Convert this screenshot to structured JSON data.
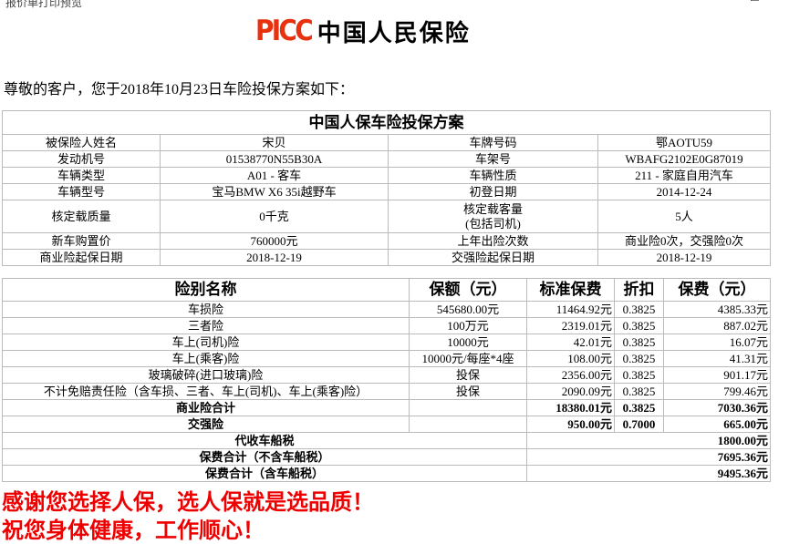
{
  "window": {
    "title": "报价单打印预览",
    "controls": [
      "—",
      "☐",
      "✕"
    ]
  },
  "logo": {
    "brand": "PICC",
    "name": "中国人民保险",
    "brand_color": "#e8320f"
  },
  "greeting": "尊敬的客户，您于2018年10月23日车险投保方案如下：",
  "info_table": {
    "title": "中国人保车险投保方案",
    "rows": [
      [
        "被保险人姓名",
        "宋贝",
        "车牌号码",
        "鄂AOTU59"
      ],
      [
        "发动机号",
        "01538770N55B30A",
        "车架号",
        "WBAFG2102E0G87019"
      ],
      [
        "车辆类型",
        "A01 - 客车",
        "车辆性质",
        "211 - 家庭自用汽车"
      ],
      [
        "车辆型号",
        "宝马BMW X6 35i越野车",
        "初登日期",
        "2014-12-24"
      ],
      [
        "核定载质量",
        "0千克",
        "核定载客量\n(包括司机)",
        "5人"
      ],
      [
        "新车购置价",
        "760000元",
        "上年出险次数",
        "商业险0次，交强险0次"
      ],
      [
        "商业险起保日期",
        "2018-12-19",
        "交强险起保日期",
        "2018-12-19"
      ]
    ]
  },
  "coverage_table": {
    "headers": [
      "险别名称",
      "保额（元）",
      "标准保费",
      "折扣",
      "保费（元）"
    ],
    "rows": [
      [
        "车损险",
        "545680.00元",
        "11464.92元",
        "0.3825",
        "4385.33元"
      ],
      [
        "三者险",
        "100万元",
        "2319.01元",
        "0.3825",
        "887.02元"
      ],
      [
        "车上(司机)险",
        "10000元",
        "42.01元",
        "0.3825",
        "16.07元"
      ],
      [
        "车上(乘客)险",
        "10000元/每座*4座",
        "108.00元",
        "0.3825",
        "41.31元"
      ],
      [
        "玻璃破碎(进口玻璃)险",
        "投保",
        "2356.00元",
        "0.3825",
        "901.17元"
      ],
      [
        "不计免赔责任险（含车损、三者、车上(司机)、车上(乘客)险）",
        "投保",
        "2090.09元",
        "0.3825",
        "799.46元"
      ]
    ],
    "commercial_total": {
      "label": "商业险合计",
      "standard": "18380.01元",
      "discount": "0.3825",
      "premium": "7030.36元"
    },
    "compulsory": {
      "label": "交强险",
      "standard": "950.00元",
      "discount": "0.7000",
      "premium": "665.00元"
    },
    "vehicle_tax": {
      "label": "代收车船税",
      "value": "1800.00元"
    },
    "total_excl_tax": {
      "label": "保费合计（不含车船税）",
      "value": "7695.36元"
    },
    "total_incl_tax": {
      "label": "保费合计（含车船税）",
      "value": "9495.36元"
    }
  },
  "thanks": "感谢您选择人保，选人保就是选品质！",
  "wish": "祝您身体健康，工作顺心！"
}
